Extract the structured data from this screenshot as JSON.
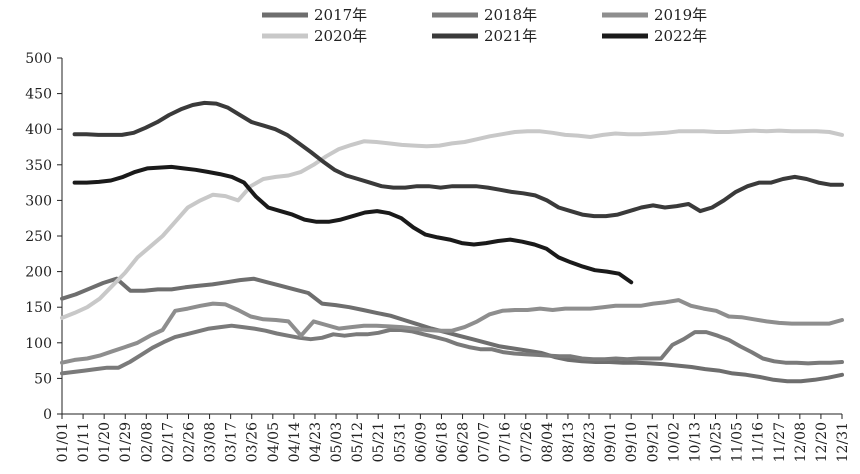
{
  "chart_data": {
    "type": "line",
    "title": "",
    "xlabel": "",
    "ylabel": "",
    "ylim": [
      0,
      500
    ],
    "yticks": [
      0,
      50,
      100,
      150,
      200,
      250,
      300,
      350,
      400,
      450,
      500
    ],
    "grid": false,
    "legend_position": "top",
    "x_tick_labels": [
      "01/01",
      "01/11",
      "01/20",
      "01/29",
      "02/08",
      "02/17",
      "02/26",
      "03/08",
      "03/17",
      "03/26",
      "04/05",
      "04/14",
      "04/23",
      "05/03",
      "05/12",
      "05/21",
      "05/31",
      "06/09",
      "06/18",
      "06/28",
      "07/07",
      "07/16",
      "07/26",
      "08/04",
      "08/13",
      "08/23",
      "09/01",
      "09/10",
      "09/21",
      "10/02",
      "10/13",
      "10/25",
      "11/05",
      "11/16",
      "11/27",
      "12/08",
      "12/20",
      "12/31"
    ],
    "series": [
      {
        "name": "2017年",
        "color": "#6e6e6e",
        "width": 4,
        "values": [
          162,
          168,
          176,
          184,
          190,
          173,
          173,
          175,
          175,
          178,
          180,
          182,
          185,
          188,
          190,
          185,
          180,
          175,
          170,
          155,
          153,
          150,
          146,
          142,
          138,
          132,
          126,
          120,
          115,
          110,
          105,
          100,
          95,
          92,
          89,
          86,
          80,
          76,
          74,
          73,
          73,
          72,
          72,
          71,
          70,
          68,
          66,
          63,
          61,
          57,
          55,
          52,
          48,
          46,
          46,
          48,
          51,
          55
        ]
      },
      {
        "name": "2018年",
        "color": "#7a7a7a",
        "width": 4,
        "values": [
          57,
          59,
          61,
          63,
          65,
          65,
          73,
          83,
          93,
          101,
          108,
          112,
          116,
          120,
          122,
          124,
          122,
          120,
          117,
          113,
          110,
          107,
          105,
          107,
          112,
          110,
          112,
          112,
          114,
          118,
          118,
          116,
          112,
          108,
          104,
          98,
          94,
          91,
          91,
          87,
          85,
          84,
          83,
          82,
          81,
          81,
          78,
          77,
          77,
          78,
          77,
          78,
          78,
          78,
          97,
          105,
          115,
          115,
          110,
          104,
          95,
          87,
          78,
          74,
          72,
          72,
          71,
          72,
          72,
          73
        ]
      },
      {
        "name": "2019年",
        "color": "#8e8e8e",
        "width": 4,
        "values": [
          72,
          76,
          78,
          82,
          88,
          94,
          100,
          110,
          118,
          145,
          148,
          152,
          155,
          154,
          146,
          137,
          133,
          132,
          130,
          110,
          130,
          125,
          120,
          122,
          124,
          124,
          123,
          122,
          120,
          118,
          117,
          117,
          122,
          130,
          140,
          145,
          146,
          146,
          148,
          146,
          148,
          148,
          148,
          150,
          152,
          152,
          152,
          155,
          157,
          160,
          152,
          148,
          145,
          137,
          136,
          133,
          130,
          128,
          127,
          127,
          127,
          127,
          132
        ]
      },
      {
        "name": "2020年",
        "color": "#c8c8c8",
        "width": 4,
        "values": [
          135,
          142,
          150,
          162,
          180,
          198,
          220,
          235,
          250,
          270,
          290,
          300,
          308,
          306,
          300,
          320,
          330,
          333,
          335,
          340,
          350,
          362,
          372,
          378,
          383,
          382,
          380,
          378,
          377,
          376,
          377,
          380,
          382,
          386,
          390,
          393,
          396,
          397,
          397,
          395,
          392,
          391,
          389,
          392,
          394,
          393,
          393,
          394,
          395,
          397,
          397,
          397,
          396,
          396,
          397,
          398,
          397,
          398,
          397,
          397,
          397,
          396,
          392
        ]
      },
      {
        "name": "2021年",
        "color": "#3a3a3a",
        "width": 4,
        "values": [
          393,
          393,
          392,
          392,
          392,
          395,
          402,
          410,
          420,
          428,
          434,
          437,
          436,
          430,
          420,
          410,
          405,
          400,
          392,
          380,
          368,
          355,
          343,
          335,
          330,
          325,
          320,
          318,
          318,
          320,
          320,
          318,
          320,
          320,
          320,
          318,
          315,
          312,
          310,
          307,
          300,
          290,
          285,
          280,
          278,
          278,
          280,
          285,
          290,
          293,
          290,
          292,
          295,
          285,
          290,
          300,
          312,
          320,
          325,
          325,
          330,
          333,
          330,
          325,
          322,
          322
        ]
      },
      {
        "name": "2022年",
        "color": "#1a1a1a",
        "width": 4,
        "values": [
          325,
          325,
          326,
          328,
          333,
          340,
          345,
          346,
          347,
          345,
          343,
          340,
          337,
          333,
          325,
          305,
          290,
          285,
          280,
          273,
          270,
          270,
          273,
          278,
          283,
          285,
          282,
          275,
          262,
          252,
          248,
          245,
          240,
          238,
          240,
          243,
          245,
          242,
          238,
          232,
          220,
          213,
          207,
          202,
          200,
          197,
          185
        ]
      }
    ]
  }
}
